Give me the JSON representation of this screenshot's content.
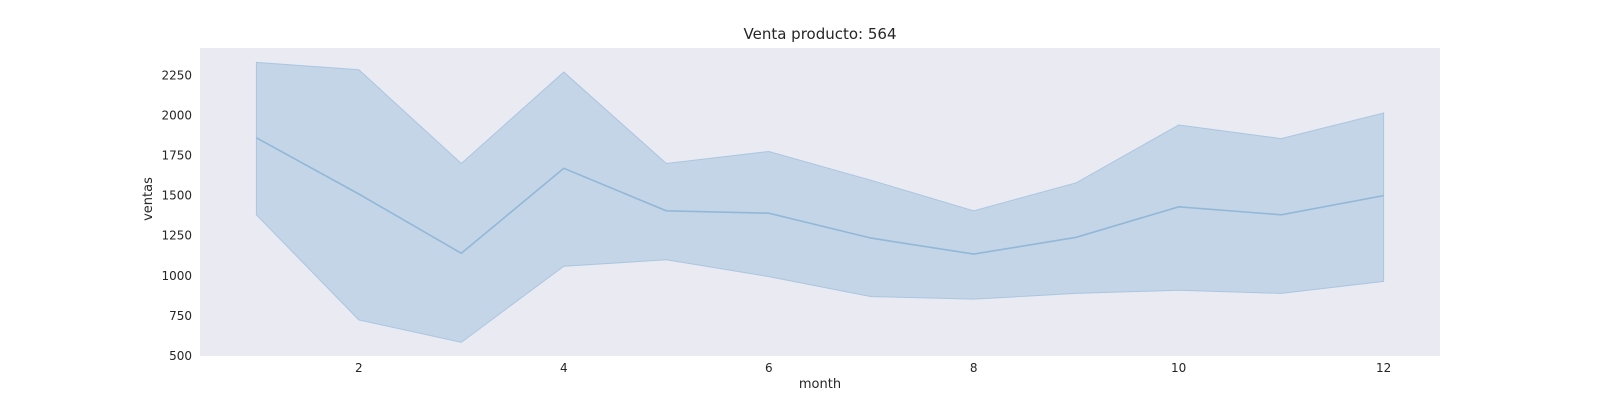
{
  "chart_data": {
    "type": "line",
    "title": "Venta producto: 564",
    "xlabel": "month",
    "ylabel": "ventas",
    "x": [
      1,
      2,
      3,
      4,
      5,
      6,
      7,
      8,
      9,
      10,
      11,
      12
    ],
    "series": [
      {
        "values": [
          1860,
          1510,
          1140,
          1670,
          1405,
          1390,
          1235,
          1135,
          1240,
          1430,
          1380,
          1500
        ],
        "lower": [
          1380,
          725,
          585,
          1060,
          1100,
          995,
          870,
          855,
          890,
          910,
          890,
          965
        ],
        "upper": [
          2330,
          2285,
          1700,
          2270,
          1700,
          1775,
          1595,
          1405,
          1580,
          1940,
          1855,
          2015
        ],
        "color": "#92b8d8",
        "band_color": "#aac6e0"
      }
    ],
    "xticks": [
      2,
      4,
      6,
      8,
      10,
      12
    ],
    "yticks": [
      500,
      750,
      1000,
      1250,
      1500,
      1750,
      2000,
      2250
    ],
    "xlim": [
      0.45,
      12.55
    ],
    "ylim": [
      500,
      2420
    ],
    "grid": false,
    "background": "#eaeaf2"
  }
}
